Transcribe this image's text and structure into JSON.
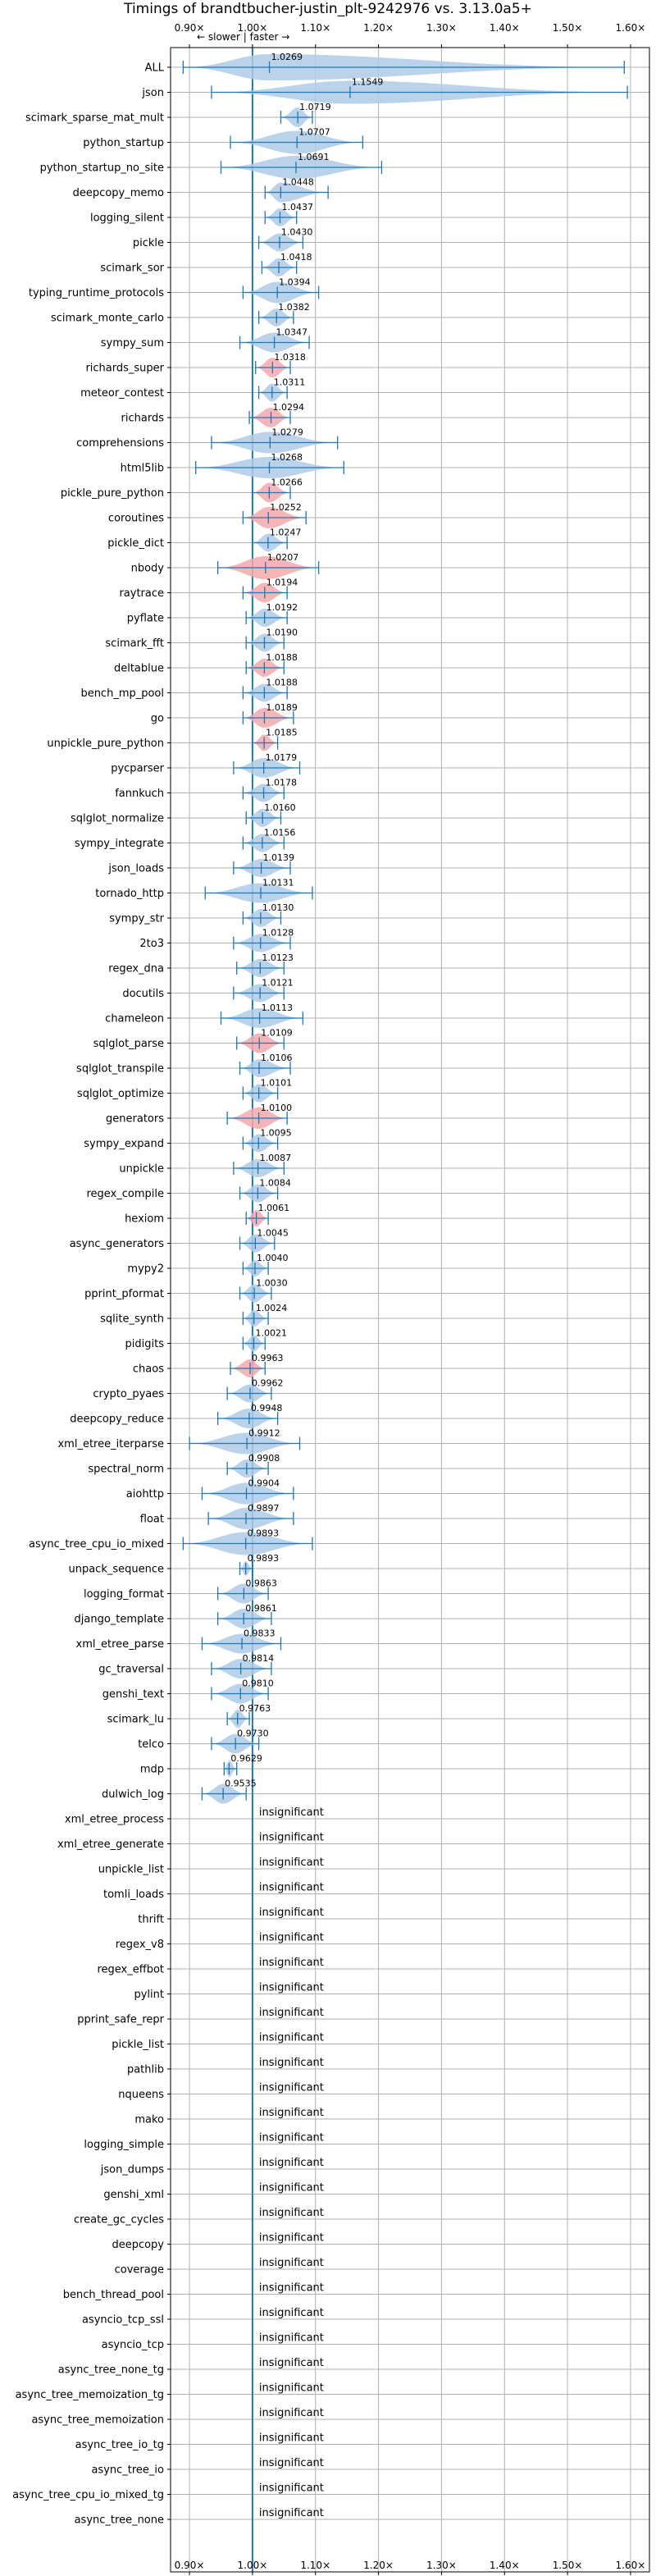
{
  "chart_data": {
    "type": "violin",
    "title": "Timings of brandtbucher-justin_plt-9242976 vs. 3.13.0a5+",
    "subtitle": "← slower | faster →",
    "xlim": [
      0.87,
      1.63
    ],
    "xticks": [
      0.9,
      1.0,
      1.1,
      1.2,
      1.3,
      1.4,
      1.5,
      1.6
    ],
    "xtick_labels": [
      "0.90×",
      "1.00×",
      "1.10×",
      "1.20×",
      "1.30×",
      "1.40×",
      "1.50×",
      "1.60×"
    ],
    "grid": true,
    "reference_line": 1.0,
    "colors": {
      "faster": "#aecbe6",
      "slower": "#f4a9ad",
      "line": "#1f77b4"
    },
    "categories": [
      "ALL",
      "json",
      "scimark_sparse_mat_mult",
      "python_startup",
      "python_startup_no_site",
      "deepcopy_memo",
      "logging_silent",
      "pickle",
      "scimark_sor",
      "typing_runtime_protocols",
      "scimark_monte_carlo",
      "sympy_sum",
      "richards_super",
      "meteor_contest",
      "richards",
      "comprehensions",
      "html5lib",
      "pickle_pure_python",
      "coroutines",
      "pickle_dict",
      "nbody",
      "raytrace",
      "pyflate",
      "scimark_fft",
      "deltablue",
      "bench_mp_pool",
      "go",
      "unpickle_pure_python",
      "pycparser",
      "fannkuch",
      "sqlglot_normalize",
      "sympy_integrate",
      "json_loads",
      "tornado_http",
      "sympy_str",
      "2to3",
      "regex_dna",
      "docutils",
      "chameleon",
      "sqlglot_parse",
      "sqlglot_transpile",
      "sqlglot_optimize",
      "generators",
      "sympy_expand",
      "unpickle",
      "regex_compile",
      "hexiom",
      "async_generators",
      "mypy2",
      "pprint_pformat",
      "sqlite_synth",
      "pidigits",
      "chaos",
      "crypto_pyaes",
      "deepcopy_reduce",
      "xml_etree_iterparse",
      "spectral_norm",
      "aiohttp",
      "float",
      "async_tree_cpu_io_mixed",
      "unpack_sequence",
      "logging_format",
      "django_template",
      "xml_etree_parse",
      "gc_traversal",
      "genshi_text",
      "scimark_lu",
      "telco",
      "mdp",
      "dulwich_log",
      "xml_etree_process",
      "xml_etree_generate",
      "unpickle_list",
      "tomli_loads",
      "thrift",
      "regex_v8",
      "regex_effbot",
      "pylint",
      "pprint_safe_repr",
      "pickle_list",
      "pathlib",
      "nqueens",
      "mako",
      "logging_simple",
      "json_dumps",
      "genshi_xml",
      "create_gc_cycles",
      "deepcopy",
      "coverage",
      "bench_thread_pool",
      "asyncio_tcp_ssl",
      "asyncio_tcp",
      "async_tree_none_tg",
      "async_tree_memoization_tg",
      "async_tree_memoization",
      "async_tree_io_tg",
      "async_tree_io",
      "async_tree_cpu_io_mixed_tg",
      "async_tree_none"
    ],
    "insignificant_label": "insignificant",
    "series": [
      {
        "label": "1.0269",
        "mean": 1.0269,
        "min": 0.89,
        "max": 1.59,
        "hw": 16,
        "color": "faster"
      },
      {
        "label": "1.1549",
        "mean": 1.1549,
        "min": 0.935,
        "max": 1.595,
        "hw": 14,
        "color": "faster"
      },
      {
        "label": "1.0719",
        "mean": 1.0719,
        "min": 1.045,
        "max": 1.095,
        "hw": 12,
        "color": "faster"
      },
      {
        "label": "1.0707",
        "mean": 1.0707,
        "min": 0.965,
        "max": 1.175,
        "hw": 14,
        "color": "faster"
      },
      {
        "label": "1.0691",
        "mean": 1.0691,
        "min": 0.95,
        "max": 1.205,
        "hw": 14,
        "color": "faster"
      },
      {
        "label": "1.0448",
        "mean": 1.0448,
        "min": 1.02,
        "max": 1.12,
        "hw": 12,
        "color": "faster"
      },
      {
        "label": "1.0437",
        "mean": 1.0437,
        "min": 1.02,
        "max": 1.07,
        "hw": 11,
        "color": "faster"
      },
      {
        "label": "1.0430",
        "mean": 1.043,
        "min": 1.01,
        "max": 1.08,
        "hw": 11,
        "color": "faster"
      },
      {
        "label": "1.0418",
        "mean": 1.0418,
        "min": 1.015,
        "max": 1.07,
        "hw": 11,
        "color": "faster"
      },
      {
        "label": "1.0394",
        "mean": 1.0394,
        "min": 0.985,
        "max": 1.105,
        "hw": 13,
        "color": "faster"
      },
      {
        "label": "1.0382",
        "mean": 1.0382,
        "min": 1.01,
        "max": 1.065,
        "hw": 11,
        "color": "faster"
      },
      {
        "label": "1.0347",
        "mean": 1.0347,
        "min": 0.98,
        "max": 1.09,
        "hw": 12,
        "color": "faster"
      },
      {
        "label": "1.0318",
        "mean": 1.0318,
        "min": 1.005,
        "max": 1.06,
        "hw": 12,
        "color": "slower"
      },
      {
        "label": "1.0311",
        "mean": 1.0311,
        "min": 1.01,
        "max": 1.055,
        "hw": 11,
        "color": "faster"
      },
      {
        "label": "1.0294",
        "mean": 1.0294,
        "min": 0.995,
        "max": 1.06,
        "hw": 12,
        "color": "slower"
      },
      {
        "label": "1.0279",
        "mean": 1.0279,
        "min": 0.935,
        "max": 1.135,
        "hw": 13,
        "color": "faster"
      },
      {
        "label": "1.0268",
        "mean": 1.0268,
        "min": 0.91,
        "max": 1.145,
        "hw": 13,
        "color": "faster"
      },
      {
        "label": "1.0266",
        "mean": 1.0266,
        "min": 1.0,
        "max": 1.06,
        "hw": 12,
        "color": "slower"
      },
      {
        "label": "1.0252",
        "mean": 1.0252,
        "min": 0.985,
        "max": 1.085,
        "hw": 13,
        "color": "slower"
      },
      {
        "label": "1.0247",
        "mean": 1.0247,
        "min": 1.0,
        "max": 1.055,
        "hw": 11,
        "color": "faster"
      },
      {
        "label": "1.0207",
        "mean": 1.0207,
        "min": 0.945,
        "max": 1.105,
        "hw": 14,
        "color": "slower"
      },
      {
        "label": "1.0194",
        "mean": 1.0194,
        "min": 0.985,
        "max": 1.055,
        "hw": 12,
        "color": "slower"
      },
      {
        "label": "1.0192",
        "mean": 1.0192,
        "min": 0.99,
        "max": 1.055,
        "hw": 11,
        "color": "faster"
      },
      {
        "label": "1.0190",
        "mean": 1.019,
        "min": 0.99,
        "max": 1.05,
        "hw": 11,
        "color": "faster"
      },
      {
        "label": "1.0188",
        "mean": 1.0188,
        "min": 0.99,
        "max": 1.05,
        "hw": 11,
        "color": "slower"
      },
      {
        "label": "1.0188",
        "mean": 1.0188,
        "min": 0.985,
        "max": 1.055,
        "hw": 11,
        "color": "faster"
      },
      {
        "label": "1.0189",
        "mean": 1.0189,
        "min": 0.985,
        "max": 1.065,
        "hw": 12,
        "color": "slower"
      },
      {
        "label": "1.0185",
        "mean": 1.0185,
        "min": 1.0,
        "max": 1.04,
        "hw": 10,
        "color": "slower"
      },
      {
        "label": "1.0179",
        "mean": 1.0179,
        "min": 0.97,
        "max": 1.075,
        "hw": 12,
        "color": "faster"
      },
      {
        "label": "1.0178",
        "mean": 1.0178,
        "min": 0.985,
        "max": 1.05,
        "hw": 11,
        "color": "faster"
      },
      {
        "label": "1.0160",
        "mean": 1.016,
        "min": 0.99,
        "max": 1.045,
        "hw": 11,
        "color": "faster"
      },
      {
        "label": "1.0156",
        "mean": 1.0156,
        "min": 0.985,
        "max": 1.05,
        "hw": 11,
        "color": "faster"
      },
      {
        "label": "1.0139",
        "mean": 1.0139,
        "min": 0.97,
        "max": 1.06,
        "hw": 11,
        "color": "faster"
      },
      {
        "label": "1.0131",
        "mean": 1.0131,
        "min": 0.925,
        "max": 1.095,
        "hw": 12,
        "color": "faster"
      },
      {
        "label": "1.0130",
        "mean": 1.013,
        "min": 0.985,
        "max": 1.045,
        "hw": 11,
        "color": "faster"
      },
      {
        "label": "1.0128",
        "mean": 1.0128,
        "min": 0.97,
        "max": 1.06,
        "hw": 11,
        "color": "faster"
      },
      {
        "label": "1.0123",
        "mean": 1.0123,
        "min": 0.975,
        "max": 1.05,
        "hw": 11,
        "color": "faster"
      },
      {
        "label": "1.0121",
        "mean": 1.0121,
        "min": 0.97,
        "max": 1.05,
        "hw": 11,
        "color": "faster"
      },
      {
        "label": "1.0113",
        "mean": 1.0113,
        "min": 0.95,
        "max": 1.08,
        "hw": 12,
        "color": "faster"
      },
      {
        "label": "1.0109",
        "mean": 1.0109,
        "min": 0.975,
        "max": 1.05,
        "hw": 12,
        "color": "slower"
      },
      {
        "label": "1.0106",
        "mean": 1.0106,
        "min": 0.98,
        "max": 1.06,
        "hw": 11,
        "color": "faster"
      },
      {
        "label": "1.0101",
        "mean": 1.0101,
        "min": 0.985,
        "max": 1.04,
        "hw": 11,
        "color": "faster"
      },
      {
        "label": "1.0100",
        "mean": 1.01,
        "min": 0.96,
        "max": 1.055,
        "hw": 13,
        "color": "slower"
      },
      {
        "label": "1.0095",
        "mean": 1.0095,
        "min": 0.985,
        "max": 1.04,
        "hw": 11,
        "color": "faster"
      },
      {
        "label": "1.0087",
        "mean": 1.0087,
        "min": 0.97,
        "max": 1.05,
        "hw": 11,
        "color": "faster"
      },
      {
        "label": "1.0084",
        "mean": 1.0084,
        "min": 0.98,
        "max": 1.04,
        "hw": 11,
        "color": "faster"
      },
      {
        "label": "1.0061",
        "mean": 1.0061,
        "min": 0.99,
        "max": 1.025,
        "hw": 10,
        "color": "slower"
      },
      {
        "label": "1.0045",
        "mean": 1.0045,
        "min": 0.98,
        "max": 1.035,
        "hw": 11,
        "color": "faster"
      },
      {
        "label": "1.0040",
        "mean": 1.004,
        "min": 0.985,
        "max": 1.025,
        "hw": 10,
        "color": "faster"
      },
      {
        "label": "1.0030",
        "mean": 1.003,
        "min": 0.98,
        "max": 1.03,
        "hw": 11,
        "color": "faster"
      },
      {
        "label": "1.0024",
        "mean": 1.0024,
        "min": 0.985,
        "max": 1.025,
        "hw": 10,
        "color": "faster"
      },
      {
        "label": "1.0021",
        "mean": 1.0021,
        "min": 0.985,
        "max": 1.02,
        "hw": 10,
        "color": "faster"
      },
      {
        "label": "0.9963",
        "mean": 0.9963,
        "min": 0.965,
        "max": 1.02,
        "hw": 11,
        "color": "slower"
      },
      {
        "label": "0.9962",
        "mean": 0.9962,
        "min": 0.96,
        "max": 1.03,
        "hw": 11,
        "color": "faster"
      },
      {
        "label": "0.9948",
        "mean": 0.9948,
        "min": 0.945,
        "max": 1.04,
        "hw": 12,
        "color": "faster"
      },
      {
        "label": "0.9912",
        "mean": 0.9912,
        "min": 0.9,
        "max": 1.075,
        "hw": 13,
        "color": "faster"
      },
      {
        "label": "0.9908",
        "mean": 0.9908,
        "min": 0.96,
        "max": 1.025,
        "hw": 11,
        "color": "faster"
      },
      {
        "label": "0.9904",
        "mean": 0.9904,
        "min": 0.92,
        "max": 1.065,
        "hw": 13,
        "color": "faster"
      },
      {
        "label": "0.9897",
        "mean": 0.9897,
        "min": 0.93,
        "max": 1.065,
        "hw": 13,
        "color": "faster"
      },
      {
        "label": "0.9893",
        "mean": 0.9893,
        "min": 0.89,
        "max": 1.095,
        "hw": 14,
        "color": "faster"
      },
      {
        "label": "0.9893",
        "mean": 0.9893,
        "min": 0.98,
        "max": 1.0,
        "hw": 9,
        "color": "faster"
      },
      {
        "label": "0.9863",
        "mean": 0.9863,
        "min": 0.945,
        "max": 1.025,
        "hw": 12,
        "color": "faster"
      },
      {
        "label": "0.9861",
        "mean": 0.9861,
        "min": 0.945,
        "max": 1.03,
        "hw": 12,
        "color": "faster"
      },
      {
        "label": "0.9833",
        "mean": 0.9833,
        "min": 0.92,
        "max": 1.045,
        "hw": 12,
        "color": "faster"
      },
      {
        "label": "0.9814",
        "mean": 0.9814,
        "min": 0.935,
        "max": 1.03,
        "hw": 12,
        "color": "faster"
      },
      {
        "label": "0.9810",
        "mean": 0.981,
        "min": 0.935,
        "max": 1.025,
        "hw": 12,
        "color": "faster"
      },
      {
        "label": "0.9763",
        "mean": 0.9763,
        "min": 0.96,
        "max": 0.995,
        "hw": 11,
        "color": "faster"
      },
      {
        "label": "0.9730",
        "mean": 0.973,
        "min": 0.935,
        "max": 1.01,
        "hw": 12,
        "color": "faster"
      },
      {
        "label": "0.9629",
        "mean": 0.9629,
        "min": 0.955,
        "max": 0.975,
        "hw": 10,
        "color": "faster"
      },
      {
        "label": "0.9535",
        "mean": 0.9535,
        "min": 0.92,
        "max": 0.99,
        "hw": 12,
        "color": "faster"
      }
    ]
  }
}
